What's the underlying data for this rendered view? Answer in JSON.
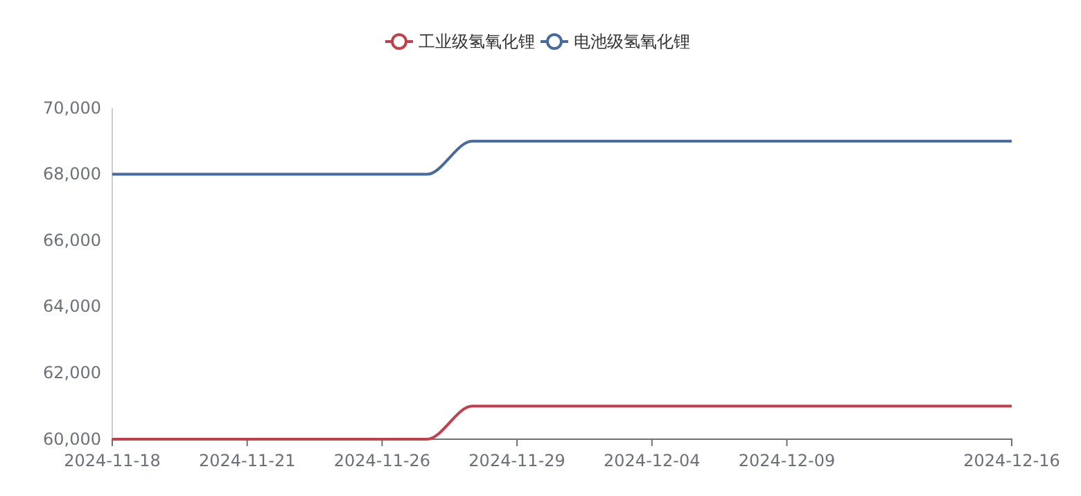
{
  "chart_data": {
    "type": "line",
    "categories": [
      "2024-11-18",
      null,
      null,
      "2024-11-21",
      null,
      null,
      "2024-11-26",
      null,
      null,
      "2024-11-29",
      null,
      null,
      "2024-12-04",
      null,
      null,
      "2024-12-09",
      null,
      null,
      null,
      null,
      "2024-12-16"
    ],
    "series": [
      {
        "name": "工业级氢氧化锂",
        "color": "#c23f4b",
        "values": [
          60000,
          60000,
          60000,
          60000,
          60000,
          60000,
          60000,
          60000,
          61000,
          61000,
          61000,
          61000,
          61000,
          61000,
          61000,
          61000,
          61000,
          61000,
          61000,
          61000,
          61000
        ]
      },
      {
        "name": "电池级氢氧化锂",
        "color": "#456b9e",
        "values": [
          68000,
          68000,
          68000,
          68000,
          68000,
          68000,
          68000,
          68000,
          69000,
          69000,
          69000,
          69000,
          69000,
          69000,
          69000,
          69000,
          69000,
          69000,
          69000,
          69000,
          69000
        ]
      }
    ],
    "ylim": [
      60000,
      70000
    ],
    "yticks": [
      {
        "value": 60000,
        "label": "60,000"
      },
      {
        "value": 62000,
        "label": "62,000"
      },
      {
        "value": 64000,
        "label": "64,000"
      },
      {
        "value": 66000,
        "label": "66,000"
      },
      {
        "value": 68000,
        "label": "68,000"
      },
      {
        "value": 70000,
        "label": "70,000"
      }
    ],
    "grid": false,
    "legend": "top",
    "marker": "none",
    "line_style": "solid"
  }
}
